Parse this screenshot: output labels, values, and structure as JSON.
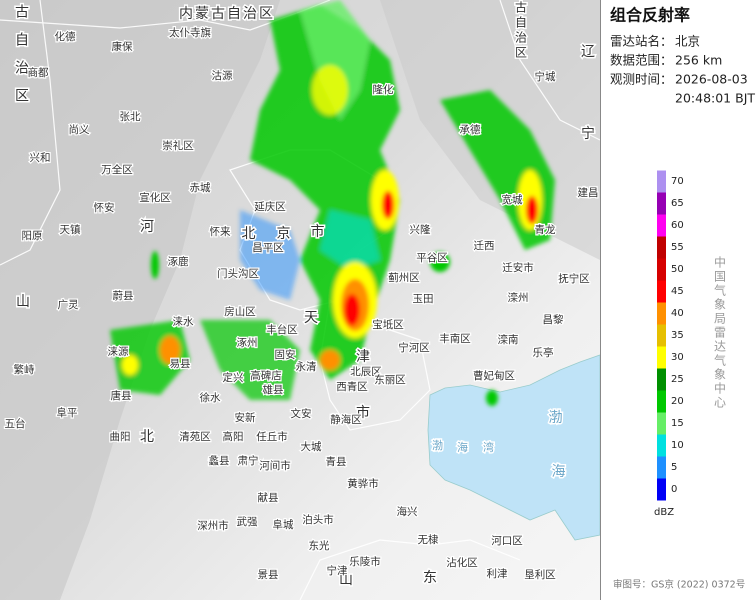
{
  "panel": {
    "title": "组合反射率",
    "rows": [
      {
        "label": "雷达站名：",
        "value": "北京"
      },
      {
        "label": "数据范围：",
        "value": "256 km"
      },
      {
        "label": "观测时间：",
        "value": "2026-08-03"
      }
    ],
    "time_line2": "20:48:01 BJT"
  },
  "legend": {
    "unit": "dBZ",
    "ticks": [
      0,
      5,
      10,
      15,
      20,
      25,
      30,
      35,
      40,
      45,
      50,
      55,
      60,
      65,
      70
    ],
    "colors": [
      "#0000f6",
      "#1e90ff",
      "#00e0e0",
      "#66ee66",
      "#00c800",
      "#009000",
      "#ffff00",
      "#e6bf00",
      "#ff9000",
      "#ff0000",
      "#d60000",
      "#c00000",
      "#ff00f0",
      "#9600b4",
      "#ad90f0"
    ]
  },
  "agency": "中国气象局雷达气象中心",
  "approval": "审图号：GS京 (2022) 0372号",
  "map": {
    "regions": [
      "内蒙古自治区",
      "内蒙古自治区",
      "内蒙古自治区",
      "北京市",
      "天津市",
      "河北",
      "山",
      "辽宁",
      "渤海",
      "渤海湾",
      "山东"
    ],
    "places": [
      "化德",
      "康保",
      "太仆寺旗",
      "商都",
      "沽源",
      "尚义",
      "张北",
      "崇礼区",
      "兴和",
      "万全区",
      "宣化区",
      "怀安",
      "阳原",
      "天镇",
      "赤城",
      "怀来",
      "延庆区",
      "隆化",
      "承德",
      "宁城",
      "宽城",
      "青龙",
      "建昌",
      "兴隆",
      "迁西",
      "迁安市",
      "抚宁区",
      "昌黎",
      "乐亭",
      "滦南",
      "曹妃甸区",
      "滦州",
      "玉田",
      "蓟州区",
      "宝坻区",
      "宁河区",
      "丰南区",
      "北辰区",
      "东丽区",
      "西青区",
      "静海区",
      "大城",
      "文安",
      "永清",
      "固安",
      "涿州",
      "高碑店",
      "涞水",
      "易县",
      "涞源",
      "定兴",
      "徐水",
      "安新",
      "雄县",
      "任丘市",
      "高阳",
      "河间市",
      "肃宁",
      "清苑区",
      "蠡县",
      "唐县",
      "阜平",
      "曲阳",
      "广灵",
      "蔚县",
      "涿鹿",
      "繁峙",
      "五台",
      "青县",
      "泊头市",
      "黄骅市",
      "献县",
      "深州市",
      "武强",
      "阜城",
      "东光",
      "海兴",
      "无棣",
      "乐陵市",
      "宁津",
      "沾化区",
      "河口区",
      "利津",
      "垦利区",
      "景县",
      "门头沟区",
      "房山区",
      "昌平区",
      "平谷区",
      "丰台区"
    ]
  }
}
